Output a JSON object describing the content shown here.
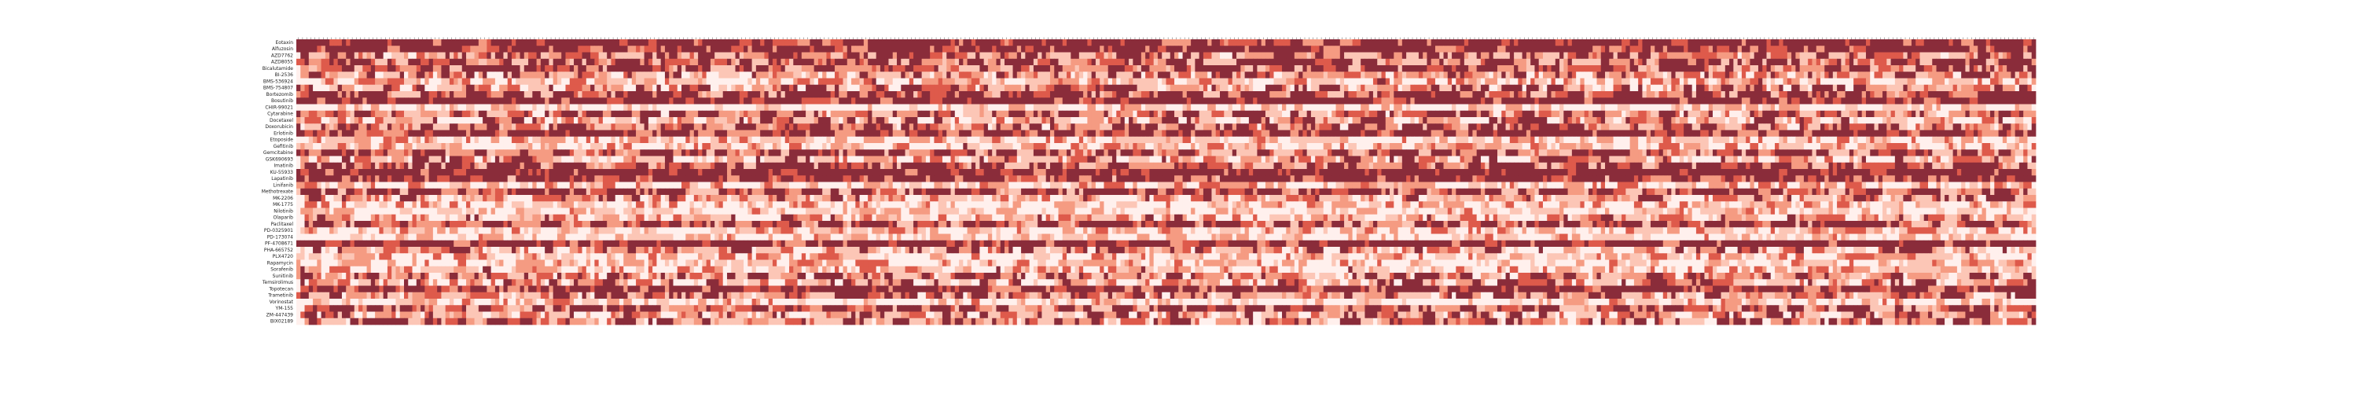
{
  "chart_data": {
    "type": "heatmap",
    "title": "",
    "xlabel": "",
    "ylabel": "",
    "row_labels": [
      "Eotaxin",
      "Alfuzosin",
      "AZD7762",
      "AZD8055",
      "Bicalutamide",
      "BI-2536",
      "BMS-536924",
      "BMS-754807",
      "Bortezomib",
      "Bosutinib",
      "CHIR-99021",
      "Cytarabine",
      "Docetaxel",
      "Doxorubicin",
      "Erlotinib",
      "Etoposide",
      "Gefitinib",
      "Gemcitabine",
      "GSK690693",
      "Imatinib",
      "KU-55933",
      "Lapatinib",
      "Linifanib",
      "Methotrexate",
      "MK-2206",
      "MK-1775",
      "Nilotinib",
      "Olaparib",
      "Paclitaxel",
      "PD-0325901",
      "PD-173074",
      "PF-4708671",
      "PHA-665752",
      "PLX4720",
      "Rapamycin",
      "Sorafenib",
      "Sunitinib",
      "Temsirolimus",
      "Topotecan",
      "Trametinib",
      "Vorinostat",
      "YM-155",
      "ZM-447439",
      "BIX02189"
    ],
    "column_count": 420,
    "column_label_note": "420 column headers are printed vertically at a size too small to read",
    "color_scale": {
      "colors": [
        "#fff0ed",
        "#fcc6b6",
        "#f59b82",
        "#de5a4b",
        "#8a2c3a"
      ],
      "min": 0,
      "max": 4
    },
    "values_encoding": "each row is a string of digits 0-4, one digit per column, giving the color bin of each cell",
    "values": []
  }
}
